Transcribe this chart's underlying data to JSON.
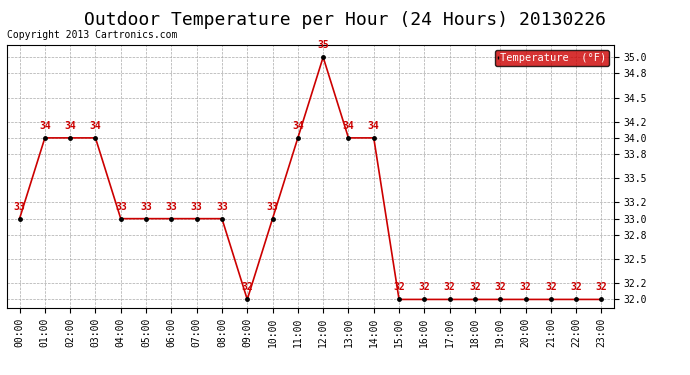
{
  "title": "Outdoor Temperature per Hour (24 Hours) 20130226",
  "copyright": "Copyright 2013 Cartronics.com",
  "legend_label": "Temperature  (°F)",
  "hours": [
    "00:00",
    "01:00",
    "02:00",
    "03:00",
    "04:00",
    "05:00",
    "06:00",
    "07:00",
    "08:00",
    "09:00",
    "10:00",
    "11:00",
    "12:00",
    "13:00",
    "14:00",
    "15:00",
    "16:00",
    "17:00",
    "18:00",
    "19:00",
    "20:00",
    "21:00",
    "22:00",
    "23:00"
  ],
  "temperatures": [
    33,
    34,
    34,
    34,
    33,
    33,
    33,
    33,
    33,
    32,
    33,
    34,
    35,
    34,
    34,
    32,
    32,
    32,
    32,
    32,
    32,
    32,
    32,
    32
  ],
  "ylim": [
    31.9,
    35.15
  ],
  "yticks": [
    32.0,
    32.2,
    32.5,
    32.8,
    33.0,
    33.2,
    33.5,
    33.8,
    34.0,
    34.2,
    34.5,
    34.8,
    35.0
  ],
  "line_color": "#cc0000",
  "marker_color": "#000000",
  "bg_color": "#ffffff",
  "grid_color": "#aaaaaa",
  "title_fontsize": 13,
  "annotation_color": "#cc0000",
  "annotation_fontsize": 7,
  "tick_fontsize": 7,
  "copyright_fontsize": 7
}
